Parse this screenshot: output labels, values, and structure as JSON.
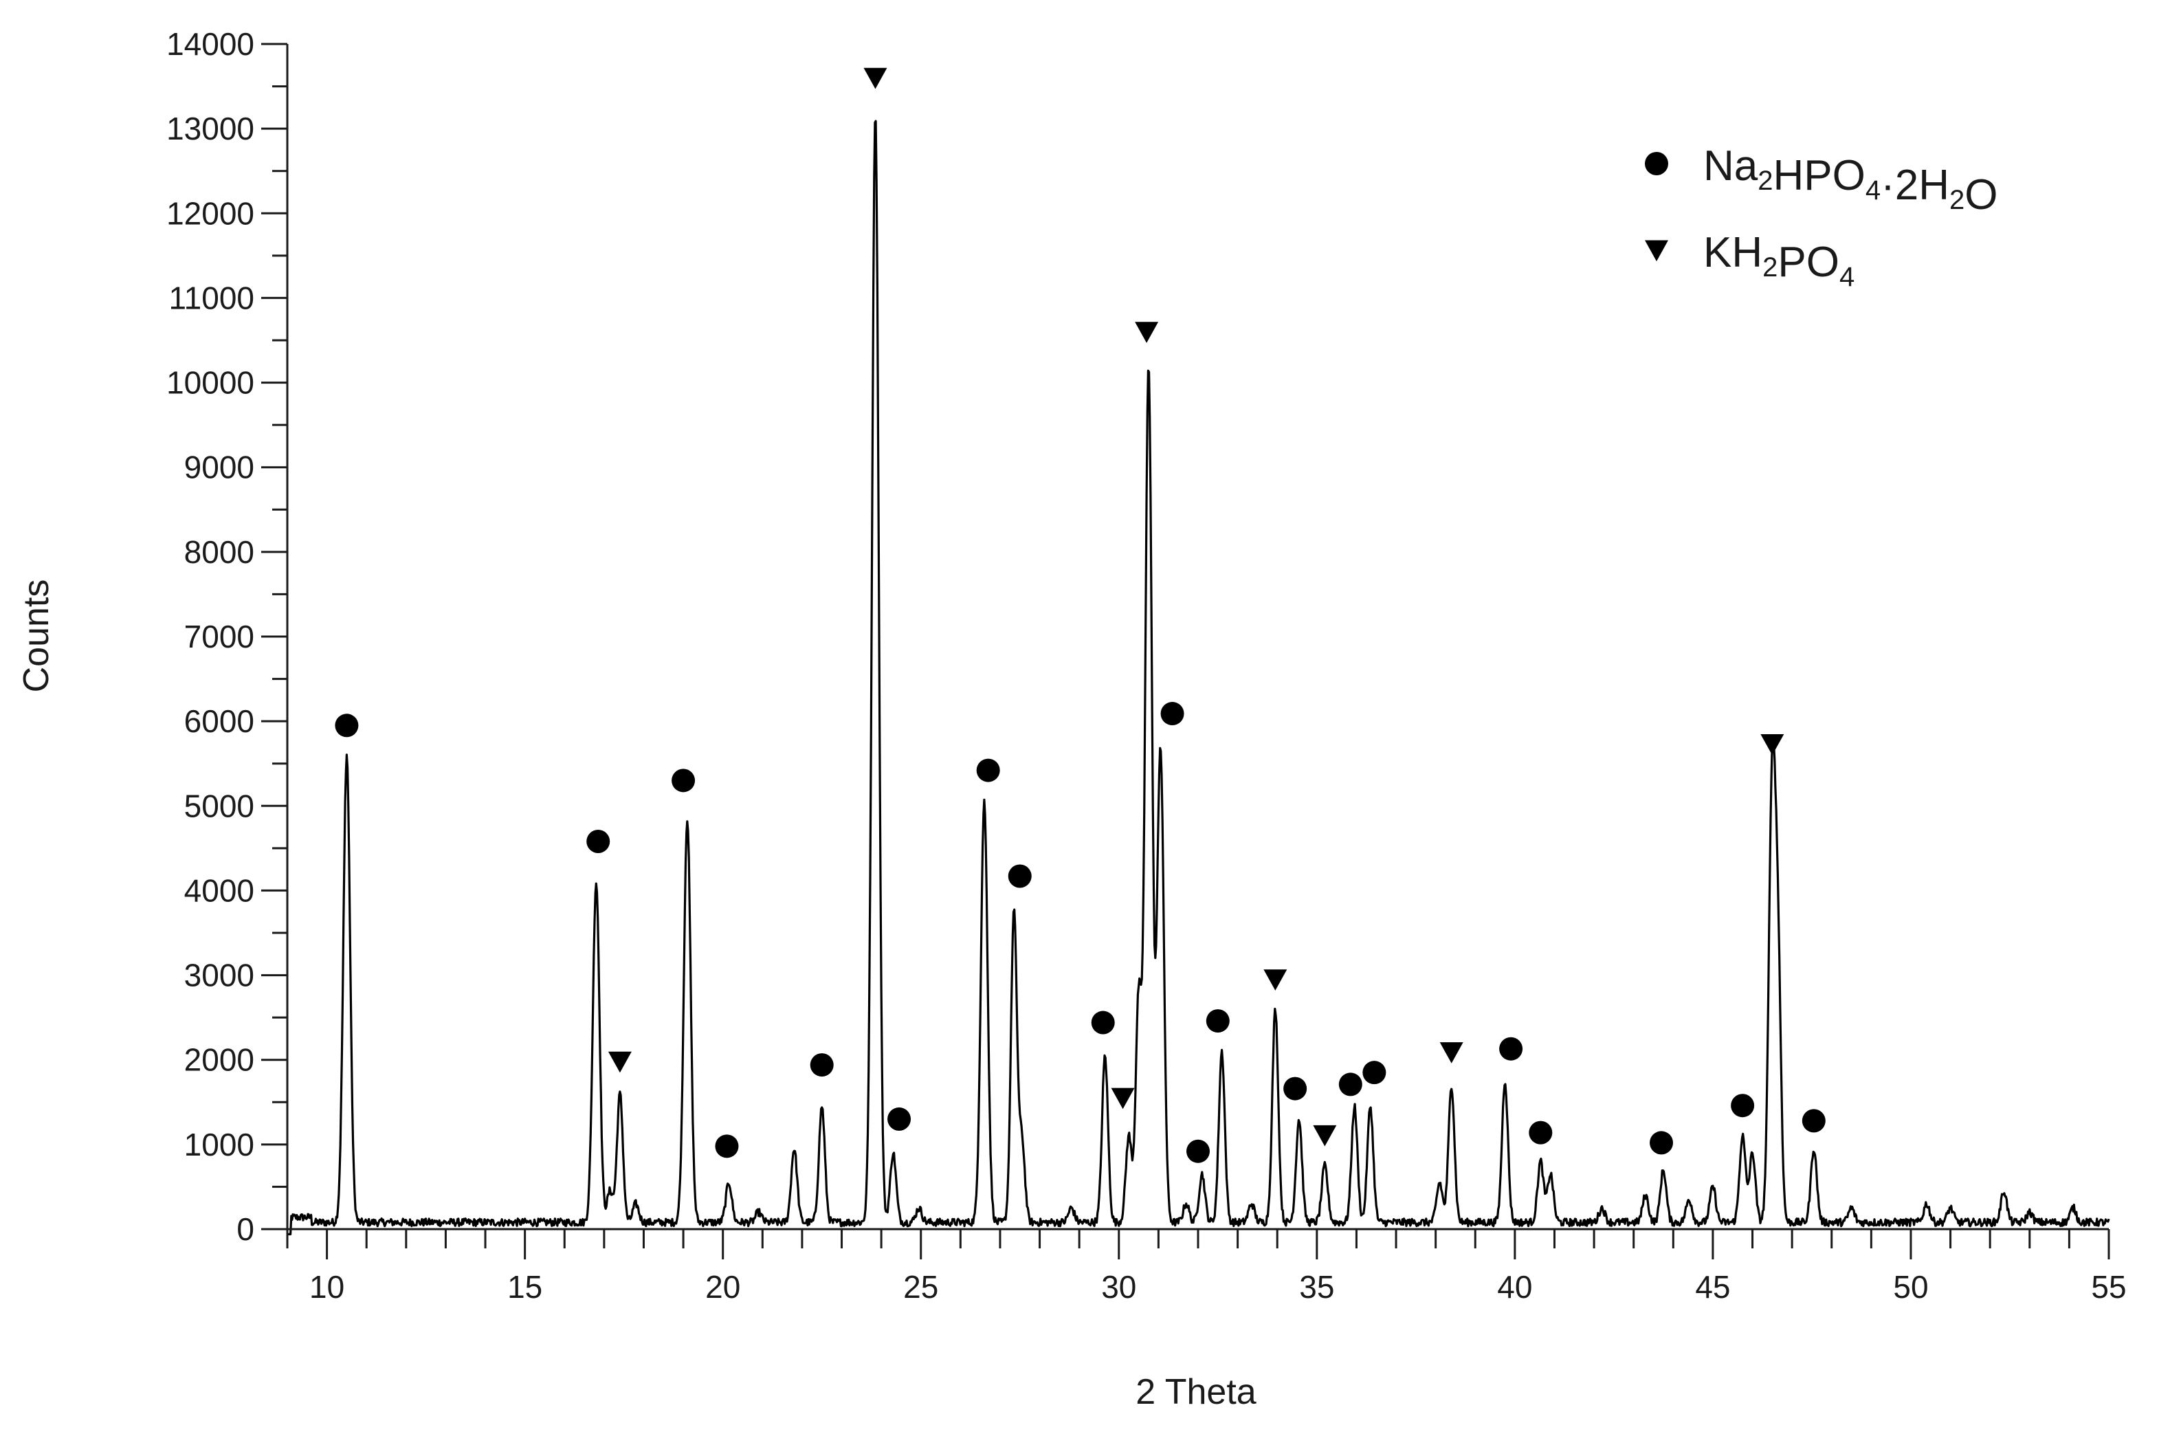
{
  "chart_data": {
    "type": "line",
    "title": "",
    "xlabel": "2 Theta",
    "ylabel": "Counts",
    "xlim": [
      9,
      55
    ],
    "ylim": [
      0,
      14000
    ],
    "x_ticks": [
      "10",
      "15",
      "20",
      "25",
      "30",
      "35",
      "40",
      "45",
      "50",
      "55"
    ],
    "y_ticks": [
      "0",
      "1000",
      "2000",
      "3000",
      "4000",
      "5000",
      "6000",
      "7000",
      "8000",
      "9000",
      "10000",
      "11000",
      "12000",
      "13000",
      "14000"
    ],
    "legend_position": "top-right",
    "legend": [
      {
        "marker": "circle",
        "label_parts": [
          [
            "Na",
            ""
          ],
          [
            "2",
            "sub"
          ],
          [
            "HPO",
            ""
          ],
          [
            "4",
            "sub"
          ],
          [
            "·2H",
            ""
          ],
          [
            "2",
            "sub"
          ],
          [
            "O",
            ""
          ]
        ]
      },
      {
        "marker": "triangle-down",
        "label_parts": [
          [
            "KH",
            ""
          ],
          [
            "2",
            "sub"
          ],
          [
            "PO",
            ""
          ],
          [
            "4",
            "sub"
          ]
        ]
      }
    ],
    "line_color": "#000000",
    "baseline": 80,
    "peaks": [
      {
        "x": 10.5,
        "y": 5600
      },
      {
        "x": 16.8,
        "y": 4100
      },
      {
        "x": 17.15,
        "y": 450
      },
      {
        "x": 17.4,
        "y": 1600
      },
      {
        "x": 17.8,
        "y": 300
      },
      {
        "x": 19.1,
        "y": 4850
      },
      {
        "x": 20.15,
        "y": 550
      },
      {
        "x": 20.9,
        "y": 200
      },
      {
        "x": 21.8,
        "y": 950
      },
      {
        "x": 22.5,
        "y": 1450
      },
      {
        "x": 23.85,
        "y": 13200
      },
      {
        "x": 24.3,
        "y": 900
      },
      {
        "x": 24.95,
        "y": 250
      },
      {
        "x": 26.6,
        "y": 5050
      },
      {
        "x": 27.35,
        "y": 3750
      },
      {
        "x": 27.55,
        "y": 1050
      },
      {
        "x": 28.8,
        "y": 250
      },
      {
        "x": 29.65,
        "y": 2050
      },
      {
        "x": 30.25,
        "y": 1100
      },
      {
        "x": 30.5,
        "y": 2750
      },
      {
        "x": 30.75,
        "y": 10200
      },
      {
        "x": 31.05,
        "y": 5700
      },
      {
        "x": 31.7,
        "y": 300
      },
      {
        "x": 32.1,
        "y": 650
      },
      {
        "x": 32.6,
        "y": 2100
      },
      {
        "x": 33.35,
        "y": 300
      },
      {
        "x": 33.95,
        "y": 2600
      },
      {
        "x": 34.55,
        "y": 1300
      },
      {
        "x": 35.2,
        "y": 750
      },
      {
        "x": 35.95,
        "y": 1450
      },
      {
        "x": 36.35,
        "y": 1450
      },
      {
        "x": 38.1,
        "y": 550
      },
      {
        "x": 38.4,
        "y": 1700
      },
      {
        "x": 39.75,
        "y": 1750
      },
      {
        "x": 40.65,
        "y": 800
      },
      {
        "x": 40.9,
        "y": 650
      },
      {
        "x": 42.2,
        "y": 250
      },
      {
        "x": 43.3,
        "y": 400
      },
      {
        "x": 43.75,
        "y": 700
      },
      {
        "x": 44.4,
        "y": 350
      },
      {
        "x": 45.0,
        "y": 500
      },
      {
        "x": 45.75,
        "y": 1100
      },
      {
        "x": 46.0,
        "y": 900
      },
      {
        "x": 46.5,
        "y": 5350
      },
      {
        "x": 46.65,
        "y": 2850
      },
      {
        "x": 47.55,
        "y": 950
      },
      {
        "x": 48.5,
        "y": 250
      },
      {
        "x": 50.4,
        "y": 300
      },
      {
        "x": 51.0,
        "y": 250
      },
      {
        "x": 52.35,
        "y": 450
      },
      {
        "x": 53.0,
        "y": 200
      },
      {
        "x": 54.1,
        "y": 250
      }
    ],
    "markers": [
      {
        "x": 10.5,
        "y": 5950,
        "type": "circle"
      },
      {
        "x": 16.85,
        "y": 4580,
        "type": "circle"
      },
      {
        "x": 17.4,
        "y": 1980,
        "type": "triangle-down"
      },
      {
        "x": 19.0,
        "y": 5300,
        "type": "circle"
      },
      {
        "x": 20.1,
        "y": 980,
        "type": "circle"
      },
      {
        "x": 22.5,
        "y": 1940,
        "type": "circle"
      },
      {
        "x": 23.85,
        "y": 13600,
        "type": "triangle-down"
      },
      {
        "x": 24.45,
        "y": 1300,
        "type": "circle"
      },
      {
        "x": 26.7,
        "y": 5420,
        "type": "circle"
      },
      {
        "x": 27.5,
        "y": 4170,
        "type": "circle"
      },
      {
        "x": 29.6,
        "y": 2440,
        "type": "circle"
      },
      {
        "x": 30.1,
        "y": 1550,
        "type": "triangle-down"
      },
      {
        "x": 30.7,
        "y": 10600,
        "type": "triangle-down"
      },
      {
        "x": 31.35,
        "y": 6090,
        "type": "circle"
      },
      {
        "x": 32.0,
        "y": 920,
        "type": "circle"
      },
      {
        "x": 32.5,
        "y": 2460,
        "type": "circle"
      },
      {
        "x": 33.95,
        "y": 2950,
        "type": "triangle-down"
      },
      {
        "x": 34.45,
        "y": 1660,
        "type": "circle"
      },
      {
        "x": 35.2,
        "y": 1110,
        "type": "triangle-down"
      },
      {
        "x": 35.85,
        "y": 1710,
        "type": "circle"
      },
      {
        "x": 36.45,
        "y": 1850,
        "type": "circle"
      },
      {
        "x": 38.4,
        "y": 2090,
        "type": "triangle-down"
      },
      {
        "x": 39.9,
        "y": 2130,
        "type": "circle"
      },
      {
        "x": 40.65,
        "y": 1140,
        "type": "circle"
      },
      {
        "x": 43.7,
        "y": 1020,
        "type": "circle"
      },
      {
        "x": 45.75,
        "y": 1460,
        "type": "circle"
      },
      {
        "x": 46.5,
        "y": 5730,
        "type": "triangle-down"
      },
      {
        "x": 47.55,
        "y": 1280,
        "type": "circle"
      }
    ]
  }
}
